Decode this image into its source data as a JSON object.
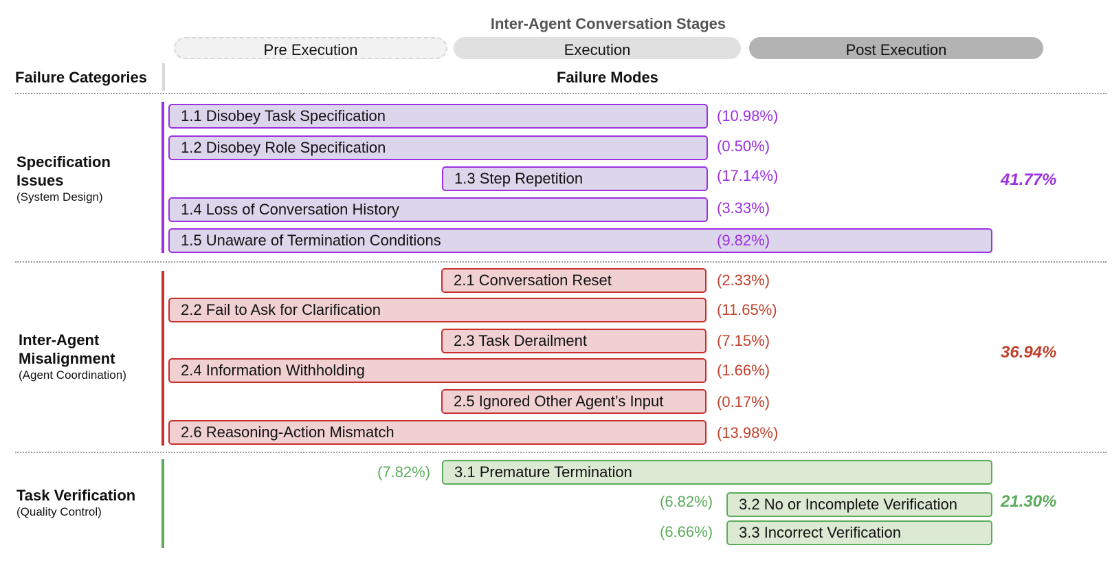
{
  "title": "Inter-Agent Conversation Stages",
  "stages": [
    "Pre Execution",
    "Execution",
    "Post Execution"
  ],
  "headers": {
    "categories": "Failure Categories",
    "modes": "Failure Modes"
  },
  "colors": {
    "spec": "#9b30e0",
    "misalignment": "#c8302d",
    "verification": "#5aab5a"
  },
  "categories": [
    {
      "name": "Specification Issues",
      "sub": "(System Design)",
      "total": "41.77%",
      "modes": [
        {
          "label": "1.1 Disobey Task Specification",
          "pct": "(10.98%)"
        },
        {
          "label": "1.2 Disobey Role Specification",
          "pct": "(0.50%)"
        },
        {
          "label": "1.3 Step Repetition",
          "pct": "(17.14%)"
        },
        {
          "label": "1.4 Loss of Conversation History",
          "pct": "(3.33%)"
        },
        {
          "label": "1.5 Unaware of Termination Conditions",
          "pct": "(9.82%)"
        }
      ]
    },
    {
      "name": "Inter-Agent Misalignment",
      "sub": "(Agent Coordination)",
      "total": "36.94%",
      "modes": [
        {
          "label": "2.1 Conversation Reset",
          "pct": "(2.33%)"
        },
        {
          "label": "2.2 Fail to Ask for Clarification",
          "pct": "(11.65%)"
        },
        {
          "label": "2.3 Task Derailment",
          "pct": "(7.15%)"
        },
        {
          "label": "2.4 Information Withholding",
          "pct": "(1.66%)"
        },
        {
          "label": "2.5 Ignored Other Agent’s Input",
          "pct": "(0.17%)"
        },
        {
          "label": "2.6 Reasoning-Action Mismatch",
          "pct": "(13.98%)"
        }
      ]
    },
    {
      "name": "Task Verification",
      "sub": "(Quality Control)",
      "total": "21.30%",
      "modes": [
        {
          "label": "3.1  Premature Termination",
          "pct": "(7.82%)"
        },
        {
          "label": "3.2 No or Incomplete Verification",
          "pct": "(6.82%)"
        },
        {
          "label": "3.3 Incorrect Verification",
          "pct": "(6.66%)"
        }
      ]
    }
  ]
}
